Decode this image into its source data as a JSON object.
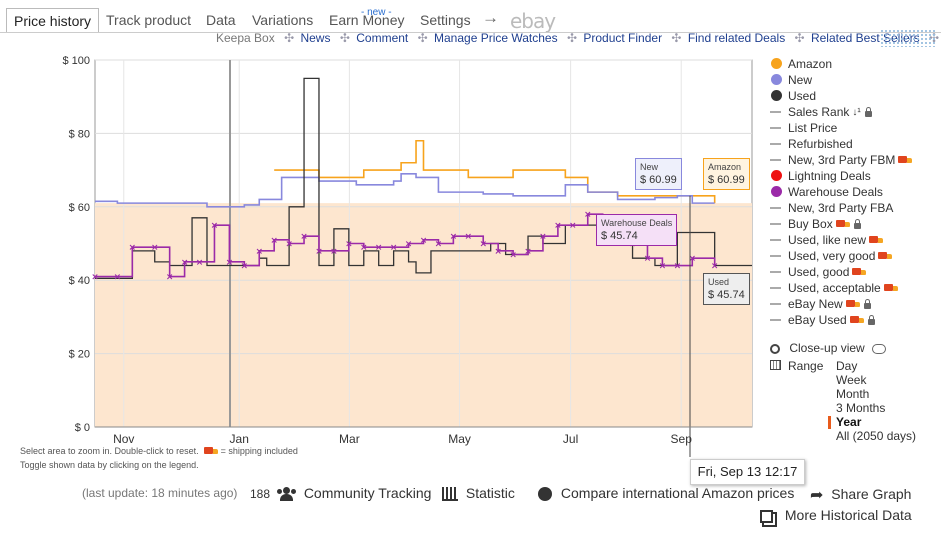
{
  "tabs": [
    {
      "label": "Price history",
      "active": true
    },
    {
      "label": "Track product"
    },
    {
      "label": "Data"
    },
    {
      "label": "Variations"
    },
    {
      "label": "Earn Money"
    },
    {
      "label": "Settings"
    }
  ],
  "tabs_new_badge": "- new -",
  "tabs_arrow": "→",
  "tabs_ebay": "ebay",
  "sublinks": {
    "keepa_box": "Keepa Box",
    "items": [
      "News",
      "Comment",
      "Manage Price Watches",
      "Product Finder",
      "Find related Deals",
      "Related Best Sellers"
    ]
  },
  "chart_data": {
    "type": "line",
    "y_ticks": [
      "$ 0",
      "$ 20",
      "$ 40",
      "$ 60",
      "$ 80",
      "$ 100"
    ],
    "ylim": [
      0,
      100
    ],
    "x_ticks": [
      "Nov",
      "Jan",
      "Mar",
      "May",
      "Jul",
      "Sep"
    ],
    "grid": true,
    "legend_position": "right",
    "colors": {
      "amazon": "#f7a31c",
      "new": "#8888dd",
      "used": "#333333",
      "warehouse": "#9b2aa8",
      "fill": "#fde6cf"
    },
    "series": [
      {
        "name": "Amazon",
        "color": "#f7a31c",
        "points": [
          [
            2.4,
            70
          ],
          [
            3.0,
            70
          ],
          [
            3.0,
            68
          ],
          [
            3.6,
            70
          ],
          [
            4.0,
            70
          ],
          [
            4.1,
            72
          ],
          [
            4.3,
            78
          ],
          [
            4.4,
            70
          ],
          [
            4.9,
            70
          ],
          [
            5.0,
            68
          ],
          [
            5.6,
            70
          ],
          [
            6.0,
            70
          ],
          [
            6.3,
            68
          ],
          [
            6.6,
            64
          ],
          [
            7.0,
            63
          ],
          [
            7.8,
            63
          ],
          [
            8.3,
            61
          ]
        ]
      },
      {
        "name": "New",
        "color": "#8888dd",
        "points": [
          [
            0.0,
            61.5
          ],
          [
            0.3,
            61
          ],
          [
            1.0,
            61
          ],
          [
            1.5,
            60
          ],
          [
            2.0,
            60.5
          ],
          [
            2.2,
            62
          ],
          [
            2.5,
            68
          ],
          [
            3.0,
            67
          ],
          [
            3.5,
            66
          ],
          [
            4.0,
            67
          ],
          [
            4.1,
            69
          ],
          [
            4.3,
            68
          ],
          [
            4.6,
            64
          ],
          [
            5.2,
            63.5
          ],
          [
            5.6,
            63
          ],
          [
            6.0,
            63
          ],
          [
            6.3,
            66
          ],
          [
            6.6,
            64
          ],
          [
            7.0,
            62
          ],
          [
            7.5,
            62.5
          ],
          [
            7.8,
            63
          ],
          [
            8.0,
            61
          ],
          [
            8.3,
            61
          ]
        ]
      },
      {
        "name": "Used",
        "color": "#333333",
        "points": [
          [
            0.0,
            40.5
          ],
          [
            0.3,
            40.5
          ],
          [
            0.5,
            48
          ],
          [
            0.8,
            45
          ],
          [
            1.0,
            44
          ],
          [
            1.2,
            44
          ],
          [
            1.3,
            57
          ],
          [
            1.5,
            44
          ],
          [
            2.0,
            44
          ],
          [
            2.2,
            46
          ],
          [
            2.3,
            44
          ],
          [
            2.6,
            60
          ],
          [
            2.8,
            95
          ],
          [
            3.0,
            44
          ],
          [
            3.2,
            54
          ],
          [
            3.4,
            44
          ],
          [
            3.6,
            48
          ],
          [
            3.8,
            44
          ],
          [
            4.0,
            48
          ],
          [
            4.2,
            45
          ],
          [
            4.3,
            42
          ],
          [
            4.5,
            48
          ],
          [
            5.0,
            48
          ],
          [
            5.3,
            50
          ],
          [
            5.5,
            47
          ],
          [
            5.8,
            52
          ],
          [
            6.0,
            50
          ],
          [
            6.3,
            55
          ],
          [
            6.7,
            55
          ],
          [
            7.0,
            52
          ],
          [
            7.2,
            46
          ],
          [
            7.5,
            44
          ],
          [
            7.8,
            53
          ],
          [
            8.0,
            53
          ],
          [
            8.3,
            44
          ],
          [
            8.8,
            44
          ]
        ]
      },
      {
        "name": "Warehouse Deals",
        "color": "#9b2aa8",
        "points": [
          [
            0.0,
            41
          ],
          [
            0.3,
            41
          ],
          [
            0.5,
            49
          ],
          [
            0.8,
            49
          ],
          [
            1.0,
            41
          ],
          [
            1.2,
            45
          ],
          [
            1.4,
            45
          ],
          [
            1.6,
            55
          ],
          [
            1.8,
            45
          ],
          [
            2.0,
            44
          ],
          [
            2.2,
            48
          ],
          [
            2.4,
            51
          ],
          [
            2.6,
            50
          ],
          [
            2.8,
            52
          ],
          [
            3.0,
            48
          ],
          [
            3.2,
            48
          ],
          [
            3.4,
            50
          ],
          [
            3.6,
            49
          ],
          [
            3.8,
            49
          ],
          [
            4.0,
            49
          ],
          [
            4.2,
            50
          ],
          [
            4.4,
            51
          ],
          [
            4.6,
            50
          ],
          [
            4.8,
            52
          ],
          [
            5.0,
            52
          ],
          [
            5.2,
            50
          ],
          [
            5.4,
            48
          ],
          [
            5.6,
            47
          ],
          [
            5.8,
            48
          ],
          [
            6.0,
            52
          ],
          [
            6.2,
            55
          ],
          [
            6.4,
            55
          ],
          [
            6.6,
            58
          ],
          [
            6.8,
            56
          ],
          [
            7.0,
            52
          ],
          [
            7.2,
            50
          ],
          [
            7.4,
            46
          ],
          [
            7.6,
            44
          ],
          [
            7.8,
            44
          ],
          [
            8.0,
            46
          ],
          [
            8.3,
            44
          ]
        ]
      }
    ],
    "hover": {
      "date": "Fri, Sep 13 12:17",
      "new": "$ 60.99",
      "amazon": "$ 60.99",
      "warehouse": "$ 45.74",
      "used": "$ 45.74"
    }
  },
  "tooltips": {
    "new_label": "New",
    "new_value": "$ 60.99",
    "amazon_label": "Amazon",
    "amazon_value": "$ 60.99",
    "warehouse_label": "Warehouse Deals",
    "warehouse_value": "$ 45.74",
    "used_label": "Used",
    "used_value": "$ 45.74",
    "date": "Fri, Sep 13 12:17"
  },
  "legend": [
    {
      "label": "Amazon",
      "kind": "dot",
      "color": "#f7a31c"
    },
    {
      "label": "New",
      "kind": "dot",
      "color": "#8888dd"
    },
    {
      "label": "Used",
      "kind": "dot",
      "color": "#333333"
    },
    {
      "label": "Sales Rank",
      "kind": "line",
      "icon": "sort-icon",
      "lock": true
    },
    {
      "label": "List Price",
      "kind": "line"
    },
    {
      "label": "Refurbished",
      "kind": "line"
    },
    {
      "label": "New, 3rd Party FBM",
      "kind": "line",
      "truck": true
    },
    {
      "label": "Lightning Deals",
      "kind": "dot",
      "color": "#ee1111"
    },
    {
      "label": "Warehouse Deals",
      "kind": "dot",
      "color": "#9b2aa8"
    },
    {
      "label": "New, 3rd Party FBA",
      "kind": "line"
    },
    {
      "label": "Buy Box",
      "kind": "line",
      "truck": true,
      "lock": true
    },
    {
      "label": "Used, like new",
      "kind": "line",
      "truck": true
    },
    {
      "label": "Used, very good",
      "kind": "line",
      "truck": true
    },
    {
      "label": "Used, good",
      "kind": "line",
      "truck": true
    },
    {
      "label": "Used, acceptable",
      "kind": "line",
      "truck": true
    },
    {
      "label": "eBay New",
      "kind": "line",
      "truck": true,
      "lock": true
    },
    {
      "label": "eBay Used",
      "kind": "line",
      "truck": true,
      "lock": true
    }
  ],
  "closeup": "Close-up view",
  "range": {
    "label": "Range",
    "options": [
      "Day",
      "Week",
      "Month",
      "3 Months",
      "Year",
      "All (2050 days)"
    ],
    "selected": "Year"
  },
  "hints": {
    "line1_a": "Select area to zoom in. Double-click to reset.",
    "line1_b": "= shipping included",
    "line2": "Toggle shown data by clicking on the legend."
  },
  "bottom": {
    "last_update": "(last update: 18 minutes ago)",
    "tracking_count": "188",
    "tracking_label": "Community Tracking",
    "statistic": "Statistic",
    "compare": "Compare international Amazon prices",
    "share": "Share Graph",
    "more": "More Historical Data"
  }
}
